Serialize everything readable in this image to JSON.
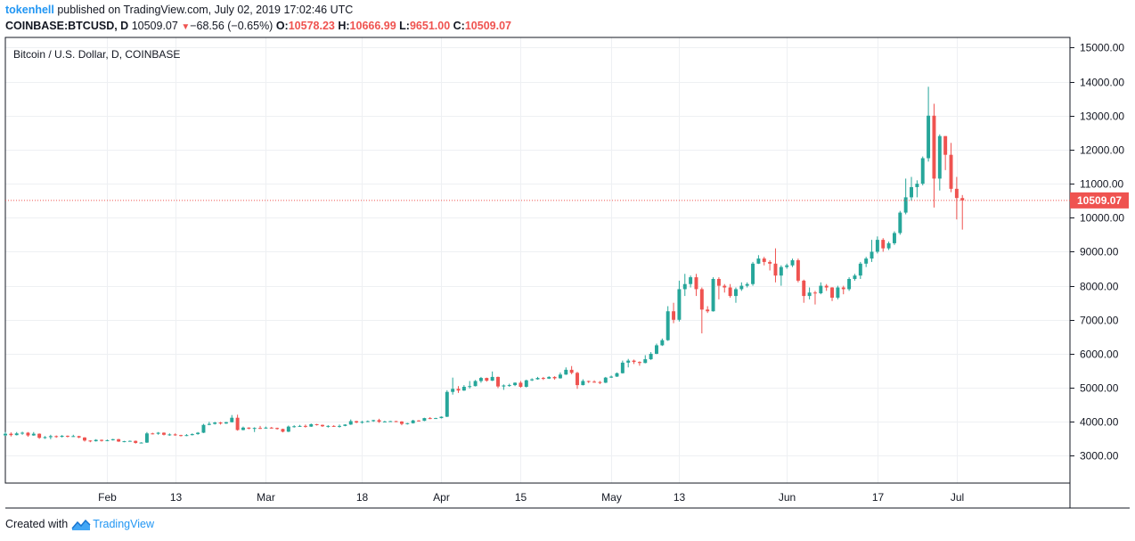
{
  "header": {
    "user": "tokenhell",
    "published": "published on TradingView.com, July 02, 2019 17:02:46 UTC"
  },
  "ohlc": {
    "symbol": "COINBASE:BTCUSD, D",
    "last": "10509.07",
    "change": "−68.56 (−0.65%)",
    "o_label": "O:",
    "o": "10578.23",
    "h_label": "H:",
    "h": "10666.99",
    "l_label": "L:",
    "l": "9651.00",
    "c_label": "C:",
    "c": "10509.07"
  },
  "footer": {
    "created": "Created with",
    "brand": "TradingView",
    "logo_icon": "tradingview-logo-icon"
  },
  "colors": {
    "up": "#26a69a",
    "down": "#ef5350",
    "grid": "#eef0f3",
    "axis": "#131722",
    "user": "#2196f3"
  },
  "chart_data": {
    "type": "candlestick",
    "title": "Bitcoin / U.S. Dollar, D, COINBASE",
    "ylim": [
      2200,
      15300
    ],
    "x_range": [
      "2019-01-14",
      "2019-07-21"
    ],
    "y_ticks": [
      3000,
      4000,
      5000,
      6000,
      7000,
      8000,
      9000,
      10000,
      11000,
      12000,
      13000,
      14000,
      15000
    ],
    "y_tick_labels": [
      "3000.00",
      "4000.00",
      "5000.00",
      "6000.00",
      "7000.00",
      "8000.00",
      "9000.00",
      "10000.00",
      "11000.00",
      "12000.00",
      "13000.00",
      "14000.00",
      "15000.00"
    ],
    "x_ticks": [
      {
        "date": "2019-02-01",
        "label": "Feb"
      },
      {
        "date": "2019-02-13",
        "label": "13"
      },
      {
        "date": "2019-03-01",
        "label": "Mar"
      },
      {
        "date": "2019-03-18",
        "label": "18"
      },
      {
        "date": "2019-04-01",
        "label": "Apr"
      },
      {
        "date": "2019-04-15",
        "label": "15"
      },
      {
        "date": "2019-05-01",
        "label": "May"
      },
      {
        "date": "2019-05-13",
        "label": "13"
      },
      {
        "date": "2019-06-01",
        "label": "Jun"
      },
      {
        "date": "2019-06-17",
        "label": "17"
      },
      {
        "date": "2019-07-01",
        "label": "Jul"
      }
    ],
    "last_price": 10509.07,
    "last_price_label": "10509.07",
    "candles": [
      [
        "2019-01-14",
        3600,
        3700,
        3590,
        3650
      ],
      [
        "2019-01-15",
        3650,
        3690,
        3570,
        3610
      ],
      [
        "2019-01-16",
        3610,
        3700,
        3600,
        3660
      ],
      [
        "2019-01-17",
        3660,
        3710,
        3620,
        3680
      ],
      [
        "2019-01-18",
        3680,
        3700,
        3560,
        3600
      ],
      [
        "2019-01-19",
        3600,
        3700,
        3590,
        3650
      ],
      [
        "2019-01-20",
        3650,
        3660,
        3500,
        3530
      ],
      [
        "2019-01-21",
        3530,
        3580,
        3500,
        3550
      ],
      [
        "2019-01-22",
        3550,
        3620,
        3490,
        3580
      ],
      [
        "2019-01-23",
        3580,
        3600,
        3530,
        3560
      ],
      [
        "2019-01-24",
        3560,
        3610,
        3540,
        3590
      ],
      [
        "2019-01-25",
        3590,
        3600,
        3540,
        3570
      ],
      [
        "2019-01-26",
        3570,
        3620,
        3560,
        3580
      ],
      [
        "2019-01-27",
        3580,
        3590,
        3520,
        3540
      ],
      [
        "2019-01-28",
        3540,
        3550,
        3420,
        3450
      ],
      [
        "2019-01-29",
        3450,
        3460,
        3400,
        3430
      ],
      [
        "2019-01-30",
        3430,
        3490,
        3420,
        3470
      ],
      [
        "2019-01-31",
        3470,
        3480,
        3420,
        3440
      ],
      [
        "2019-02-01",
        3440,
        3480,
        3430,
        3460
      ],
      [
        "2019-02-02",
        3460,
        3500,
        3450,
        3490
      ],
      [
        "2019-02-03",
        3490,
        3500,
        3410,
        3420
      ],
      [
        "2019-02-04",
        3420,
        3440,
        3400,
        3430
      ],
      [
        "2019-02-05",
        3430,
        3450,
        3420,
        3440
      ],
      [
        "2019-02-06",
        3440,
        3450,
        3360,
        3380
      ],
      [
        "2019-02-07",
        3380,
        3400,
        3370,
        3390
      ],
      [
        "2019-02-08",
        3390,
        3700,
        3380,
        3660
      ],
      [
        "2019-02-09",
        3660,
        3680,
        3630,
        3650
      ],
      [
        "2019-02-10",
        3650,
        3700,
        3620,
        3680
      ],
      [
        "2019-02-11",
        3680,
        3690,
        3600,
        3620
      ],
      [
        "2019-02-12",
        3620,
        3660,
        3590,
        3630
      ],
      [
        "2019-02-13",
        3630,
        3660,
        3590,
        3610
      ],
      [
        "2019-02-14",
        3610,
        3620,
        3570,
        3590
      ],
      [
        "2019-02-15",
        3590,
        3640,
        3580,
        3610
      ],
      [
        "2019-02-16",
        3610,
        3660,
        3600,
        3640
      ],
      [
        "2019-02-17",
        3640,
        3700,
        3620,
        3680
      ],
      [
        "2019-02-18",
        3680,
        3940,
        3670,
        3910
      ],
      [
        "2019-02-19",
        3910,
        4000,
        3900,
        3940
      ],
      [
        "2019-02-20",
        3940,
        4000,
        3920,
        3980
      ],
      [
        "2019-02-21",
        3980,
        4000,
        3920,
        3950
      ],
      [
        "2019-02-22",
        3950,
        4000,
        3940,
        3990
      ],
      [
        "2019-02-23",
        3990,
        4200,
        3980,
        4120
      ],
      [
        "2019-02-24",
        4120,
        4210,
        3740,
        3760
      ],
      [
        "2019-02-25",
        3760,
        3860,
        3750,
        3830
      ],
      [
        "2019-02-26",
        3830,
        3840,
        3780,
        3800
      ],
      [
        "2019-02-27",
        3800,
        3840,
        3700,
        3820
      ],
      [
        "2019-02-28",
        3820,
        3880,
        3790,
        3810
      ],
      [
        "2019-03-01",
        3810,
        3860,
        3800,
        3830
      ],
      [
        "2019-03-02",
        3830,
        3850,
        3800,
        3820
      ],
      [
        "2019-03-03",
        3820,
        3830,
        3770,
        3790
      ],
      [
        "2019-03-04",
        3790,
        3800,
        3690,
        3710
      ],
      [
        "2019-03-05",
        3710,
        3890,
        3700,
        3860
      ],
      [
        "2019-03-06",
        3860,
        3900,
        3830,
        3870
      ],
      [
        "2019-03-07",
        3870,
        3910,
        3850,
        3880
      ],
      [
        "2019-03-08",
        3880,
        3920,
        3830,
        3860
      ],
      [
        "2019-03-09",
        3860,
        3950,
        3850,
        3930
      ],
      [
        "2019-03-10",
        3930,
        3940,
        3890,
        3910
      ],
      [
        "2019-03-11",
        3910,
        3920,
        3850,
        3870
      ],
      [
        "2019-03-12",
        3870,
        3900,
        3830,
        3880
      ],
      [
        "2019-03-13",
        3880,
        3900,
        3850,
        3870
      ],
      [
        "2019-03-14",
        3870,
        3920,
        3830,
        3880
      ],
      [
        "2019-03-15",
        3880,
        3930,
        3870,
        3920
      ],
      [
        "2019-03-16",
        3920,
        4070,
        3910,
        4020
      ],
      [
        "2019-03-17",
        4020,
        4030,
        3960,
        3980
      ],
      [
        "2019-03-18",
        3980,
        4030,
        3950,
        4000
      ],
      [
        "2019-03-19",
        4000,
        4040,
        3990,
        4020
      ],
      [
        "2019-03-20",
        4020,
        4060,
        4000,
        4050
      ],
      [
        "2019-03-21",
        4050,
        4090,
        3970,
        4000
      ],
      [
        "2019-03-22",
        4000,
        4030,
        3990,
        4010
      ],
      [
        "2019-03-23",
        4010,
        4030,
        4000,
        4020
      ],
      [
        "2019-03-24",
        4020,
        4030,
        3990,
        4010
      ],
      [
        "2019-03-25",
        4010,
        4020,
        3900,
        3940
      ],
      [
        "2019-03-26",
        3940,
        3970,
        3920,
        3960
      ],
      [
        "2019-03-27",
        3960,
        4060,
        3950,
        4040
      ],
      [
        "2019-03-28",
        4040,
        4050,
        4010,
        4030
      ],
      [
        "2019-03-29",
        4030,
        4120,
        4020,
        4110
      ],
      [
        "2019-03-30",
        4110,
        4140,
        4080,
        4100
      ],
      [
        "2019-03-31",
        4100,
        4120,
        4090,
        4110
      ],
      [
        "2019-04-01",
        4110,
        4160,
        4100,
        4150
      ],
      [
        "2019-04-02",
        4150,
        4930,
        4140,
        4880
      ],
      [
        "2019-04-03",
        4880,
        5300,
        4800,
        4970
      ],
      [
        "2019-04-04",
        4970,
        5050,
        4850,
        4920
      ],
      [
        "2019-04-05",
        4920,
        5080,
        4910,
        5030
      ],
      [
        "2019-04-06",
        5030,
        5200,
        4980,
        5050
      ],
      [
        "2019-04-07",
        5050,
        5230,
        5040,
        5200
      ],
      [
        "2019-04-08",
        5200,
        5320,
        5150,
        5290
      ],
      [
        "2019-04-09",
        5290,
        5300,
        5180,
        5210
      ],
      [
        "2019-04-10",
        5210,
        5480,
        5200,
        5320
      ],
      [
        "2019-04-11",
        5320,
        5330,
        4990,
        5040
      ],
      [
        "2019-04-12",
        5040,
        5100,
        4940,
        5070
      ],
      [
        "2019-04-13",
        5070,
        5120,
        5030,
        5080
      ],
      [
        "2019-04-14",
        5080,
        5160,
        5050,
        5150
      ],
      [
        "2019-04-15",
        5150,
        5200,
        5000,
        5030
      ],
      [
        "2019-04-16",
        5030,
        5240,
        5010,
        5220
      ],
      [
        "2019-04-17",
        5220,
        5280,
        5200,
        5250
      ],
      [
        "2019-04-18",
        5250,
        5320,
        5240,
        5290
      ],
      [
        "2019-04-19",
        5290,
        5320,
        5230,
        5270
      ],
      [
        "2019-04-20",
        5270,
        5340,
        5260,
        5320
      ],
      [
        "2019-04-21",
        5320,
        5340,
        5240,
        5280
      ],
      [
        "2019-04-22",
        5280,
        5450,
        5270,
        5390
      ],
      [
        "2019-04-23",
        5390,
        5600,
        5380,
        5530
      ],
      [
        "2019-04-24",
        5530,
        5640,
        5400,
        5440
      ],
      [
        "2019-04-25",
        5440,
        5470,
        4970,
        5080
      ],
      [
        "2019-04-26",
        5080,
        5250,
        5070,
        5200
      ],
      [
        "2019-04-27",
        5200,
        5210,
        5140,
        5180
      ],
      [
        "2019-04-28",
        5180,
        5220,
        5150,
        5170
      ],
      [
        "2019-04-29",
        5170,
        5200,
        5110,
        5150
      ],
      [
        "2019-04-30",
        5150,
        5320,
        5140,
        5300
      ],
      [
        "2019-05-01",
        5300,
        5360,
        5290,
        5330
      ],
      [
        "2019-05-02",
        5330,
        5450,
        5320,
        5430
      ],
      [
        "2019-05-03",
        5430,
        5800,
        5420,
        5740
      ],
      [
        "2019-05-04",
        5740,
        5850,
        5600,
        5800
      ],
      [
        "2019-05-05",
        5800,
        5830,
        5700,
        5760
      ],
      [
        "2019-05-06",
        5760,
        5780,
        5650,
        5730
      ],
      [
        "2019-05-07",
        5730,
        5960,
        5720,
        5840
      ],
      [
        "2019-05-08",
        5840,
        6050,
        5820,
        6000
      ],
      [
        "2019-05-09",
        6000,
        6300,
        5990,
        6250
      ],
      [
        "2019-05-10",
        6250,
        6450,
        6230,
        6400
      ],
      [
        "2019-05-11",
        6400,
        7400,
        6380,
        7250
      ],
      [
        "2019-05-12",
        7250,
        7500,
        6900,
        7000
      ],
      [
        "2019-05-13",
        7000,
        8150,
        6950,
        7900
      ],
      [
        "2019-05-14",
        7900,
        8350,
        7700,
        8050
      ],
      [
        "2019-05-15",
        8050,
        8300,
        7950,
        8250
      ],
      [
        "2019-05-16",
        8250,
        8350,
        7700,
        7900
      ],
      [
        "2019-05-17",
        7900,
        7950,
        6600,
        7300
      ],
      [
        "2019-05-18",
        7300,
        7400,
        7200,
        7250
      ],
      [
        "2019-05-19",
        7250,
        8250,
        7240,
        8200
      ],
      [
        "2019-05-20",
        8200,
        8250,
        7600,
        8000
      ],
      [
        "2019-05-21",
        8000,
        8050,
        7800,
        7950
      ],
      [
        "2019-05-22",
        7950,
        8050,
        7650,
        7700
      ],
      [
        "2019-05-23",
        7700,
        7950,
        7500,
        7900
      ],
      [
        "2019-05-24",
        7900,
        8100,
        7850,
        8000
      ],
      [
        "2019-05-25",
        8000,
        8100,
        7950,
        8050
      ],
      [
        "2019-05-26",
        8050,
        8700,
        8000,
        8650
      ],
      [
        "2019-05-27",
        8650,
        8900,
        8640,
        8800
      ],
      [
        "2019-05-28",
        8800,
        8850,
        8600,
        8700
      ],
      [
        "2019-05-29",
        8700,
        8750,
        8450,
        8650
      ],
      [
        "2019-05-30",
        8650,
        9100,
        8100,
        8300
      ],
      [
        "2019-05-31",
        8300,
        8600,
        8000,
        8550
      ],
      [
        "2019-06-01",
        8550,
        8650,
        8500,
        8600
      ],
      [
        "2019-06-02",
        8600,
        8800,
        8550,
        8750
      ],
      [
        "2019-06-03",
        8750,
        8800,
        8100,
        8150
      ],
      [
        "2019-06-04",
        8150,
        8180,
        7500,
        7700
      ],
      [
        "2019-06-05",
        7700,
        7950,
        7600,
        7800
      ],
      [
        "2019-06-06",
        7800,
        7850,
        7450,
        7780
      ],
      [
        "2019-06-07",
        7780,
        8100,
        7750,
        8000
      ],
      [
        "2019-06-08",
        8000,
        8050,
        7850,
        7950
      ],
      [
        "2019-06-09",
        7950,
        7960,
        7550,
        7650
      ],
      [
        "2019-06-10",
        7650,
        8000,
        7600,
        7950
      ],
      [
        "2019-06-11",
        7950,
        8000,
        7750,
        7900
      ],
      [
        "2019-06-12",
        7900,
        8250,
        7850,
        8200
      ],
      [
        "2019-06-13",
        8200,
        8350,
        8150,
        8300
      ],
      [
        "2019-06-14",
        8300,
        8700,
        8200,
        8650
      ],
      [
        "2019-06-15",
        8650,
        8850,
        8550,
        8800
      ],
      [
        "2019-06-16",
        8800,
        9350,
        8700,
        9000
      ],
      [
        "2019-06-17",
        9000,
        9450,
        8950,
        9350
      ],
      [
        "2019-06-18",
        9350,
        9400,
        9000,
        9100
      ],
      [
        "2019-06-19",
        9100,
        9300,
        9050,
        9250
      ],
      [
        "2019-06-20",
        9250,
        9600,
        9200,
        9550
      ],
      [
        "2019-06-21",
        9550,
        10200,
        9500,
        10150
      ],
      [
        "2019-06-22",
        10150,
        11150,
        10100,
        10600
      ],
      [
        "2019-06-23",
        10600,
        11200,
        10500,
        10900
      ],
      [
        "2019-06-24",
        10900,
        11100,
        10600,
        11000
      ],
      [
        "2019-06-25",
        11000,
        11800,
        10950,
        11750
      ],
      [
        "2019-06-26",
        11750,
        13850,
        11650,
        13000
      ],
      [
        "2019-06-27",
        13000,
        13350,
        10300,
        11150
      ],
      [
        "2019-06-28",
        11150,
        12450,
        10800,
        12400
      ],
      [
        "2019-06-29",
        12400,
        12400,
        11400,
        11850
      ],
      [
        "2019-06-30",
        11850,
        12200,
        10750,
        10850
      ],
      [
        "2019-07-01",
        10850,
        11200,
        9950,
        10580
      ],
      [
        "2019-07-02",
        10578,
        10667,
        9651,
        10509
      ]
    ]
  }
}
